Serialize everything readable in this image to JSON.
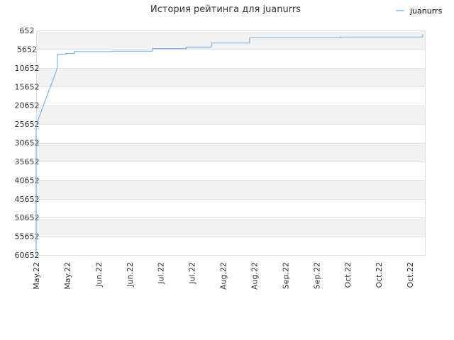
{
  "chart_data": {
    "type": "line",
    "title": "История рейтинга для juanurrs",
    "xlabel": "",
    "ylabel": "",
    "y_inverted": true,
    "ylim": [
      652,
      60652
    ],
    "y_ticks": [
      "652",
      "5652",
      "10652",
      "15652",
      "20652",
      "25652",
      "30652",
      "35652",
      "40652",
      "45652",
      "50652",
      "55652",
      "60652"
    ],
    "y_tick_values": [
      652,
      5652,
      10652,
      15652,
      20652,
      25652,
      30652,
      35652,
      40652,
      45652,
      50652,
      55652,
      60652
    ],
    "x_ticks": [
      "May.22",
      "May.22",
      "Jun.22",
      "Jun.22",
      "Jul.22",
      "Jul.22",
      "Aug.22",
      "Aug.22",
      "Sep.22",
      "Sep.22",
      "Oct.22",
      "Oct.22",
      "Oct.22"
    ],
    "grid": true,
    "legend_position": "top-right",
    "colors": {
      "series": "#7cb5ec",
      "band": "#f2f2f2",
      "grid": "#e0e0e0"
    },
    "series": [
      {
        "name": "juanurrs",
        "color": "#7cb5ec",
        "points": [
          {
            "x": "2022-05-01",
            "y": 60652
          },
          {
            "x": "2022-05-01",
            "y": 26000
          },
          {
            "x": "2022-05-11",
            "y": 10652
          },
          {
            "x": "2022-05-11",
            "y": 7000
          },
          {
            "x": "2022-05-15",
            "y": 6800
          },
          {
            "x": "2022-05-19",
            "y": 6300
          },
          {
            "x": "2022-06-06",
            "y": 6200
          },
          {
            "x": "2022-06-25",
            "y": 5500
          },
          {
            "x": "2022-07-11",
            "y": 5100
          },
          {
            "x": "2022-07-23",
            "y": 4000
          },
          {
            "x": "2022-08-10",
            "y": 2600
          },
          {
            "x": "2022-09-22",
            "y": 2400
          },
          {
            "x": "2022-10-31",
            "y": 2400
          },
          {
            "x": "2022-10-31",
            "y": 1600
          }
        ]
      }
    ]
  }
}
